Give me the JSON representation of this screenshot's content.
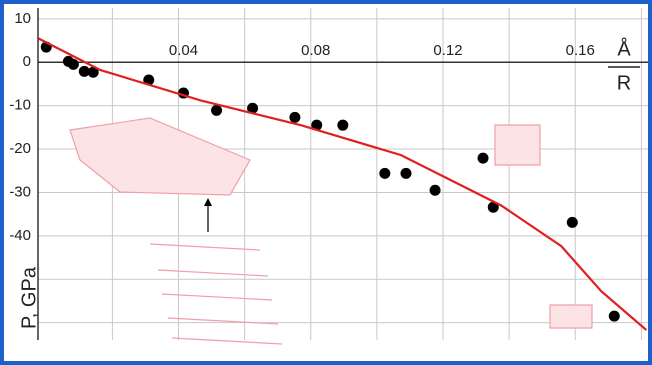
{
  "chart_data": {
    "type": "scatter",
    "y_label": "P, GPa",
    "x_label_top": "Å",
    "x_label_bottom": "R",
    "xlim": [
      -0.0025,
      0.182
    ],
    "ylim": [
      -64,
      12.5
    ],
    "xticks": [
      0.04,
      0.08,
      0.12,
      0.16
    ],
    "xminorticks": [
      0.02,
      0.06,
      0.1,
      0.14,
      0.18
    ],
    "yticks": [
      10,
      0,
      -10,
      -20,
      -30,
      -40
    ],
    "yminorticks": [
      -50,
      -60
    ],
    "grid": true,
    "series": [
      {
        "type": "scatter",
        "color": "#000000",
        "x": [
          0.0,
          0.0067,
          0.0082,
          0.0115,
          0.0142,
          0.031,
          0.0415,
          0.0515,
          0.0624,
          0.0752,
          0.0818,
          0.0897,
          0.1024,
          0.1088,
          0.1176,
          0.1321,
          0.1352,
          0.1591,
          0.1718
        ],
        "values": [
          3.5,
          0.2,
          -0.5,
          -2.1,
          -2.3,
          -4.1,
          -7.1,
          -11.1,
          -10.6,
          -12.7,
          -14.5,
          -14.5,
          -25.6,
          -25.6,
          -29.5,
          -22.1,
          -33.4,
          -36.9,
          -58.5
        ]
      },
      {
        "type": "line",
        "color": "#e02020",
        "x": [
          -0.0024,
          0.0164,
          0.0467,
          0.077,
          0.1073,
          0.1376,
          0.1558,
          0.1679,
          0.1815
        ],
        "values": [
          5.5,
          -1.8,
          -8.8,
          -14.5,
          -21.4,
          -33,
          -42.4,
          -52.8,
          -61.7
        ]
      }
    ]
  }
}
